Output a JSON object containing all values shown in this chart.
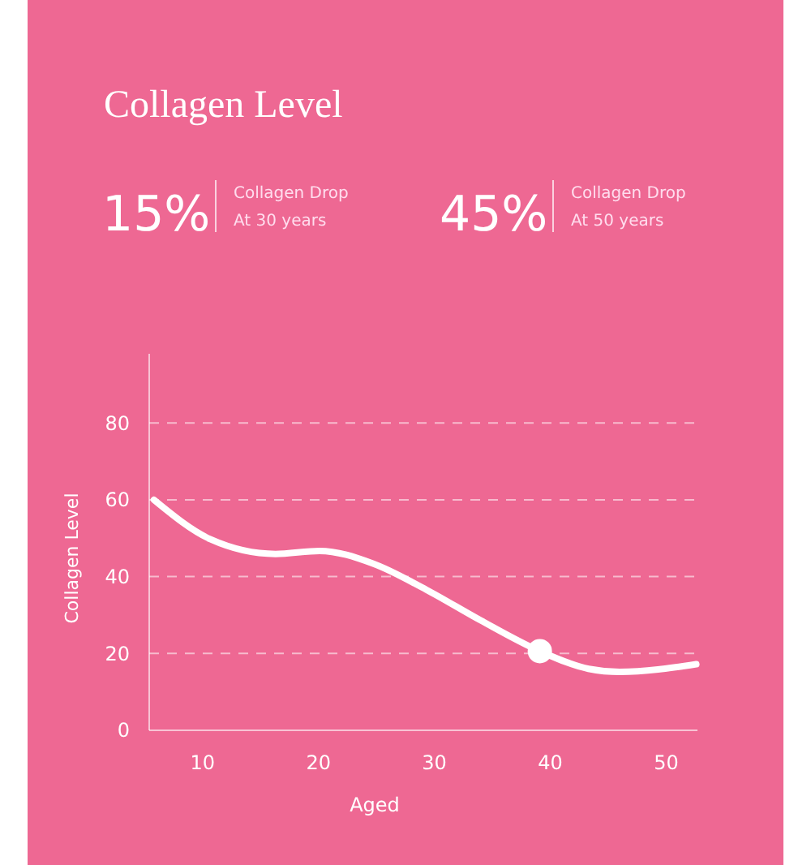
{
  "chart_data": {
    "type": "line",
    "title": "Collagen Level",
    "xlabel": "Aged",
    "ylabel": "Collagen Level",
    "annotations": [
      "15%",
      "Collagen Drop",
      "At 30 years",
      "45%",
      "Collagen Drop",
      "At 50 years"
    ],
    "series": [
      {
        "color": "#ffffff",
        "x": [
          5.8,
          10.7,
          16.3,
          20.1,
          24.7,
          29.3,
          34,
          39.1,
          43.3,
          46,
          52.6
        ],
        "values": [
          60,
          49.7,
          45.9,
          46.7,
          43.4,
          36.6,
          28.6,
          20.6,
          16,
          15.2,
          17.2
        ]
      },
      {
        "type": "scatter",
        "color": "#ffffff",
        "x": [
          39.1
        ],
        "values": [
          20.6
        ]
      }
    ],
    "xlim": [
      5.4,
      52.7
    ],
    "xticks": [
      10,
      20,
      30,
      40,
      50
    ],
    "ylim": [
      0,
      98
    ],
    "yticks": [
      0,
      20,
      40,
      60,
      80
    ],
    "grid": "y",
    "line_style": "solid"
  }
}
